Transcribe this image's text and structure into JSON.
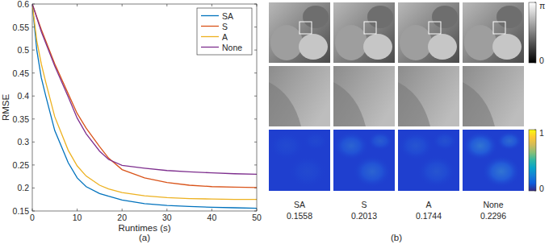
{
  "chart_data": {
    "type": "line",
    "caption": "(a)",
    "x_label": "Runtimes (s)",
    "y_label": "RMSE",
    "x": [
      0,
      1,
      2,
      3,
      5,
      8,
      10,
      12,
      15,
      17,
      20,
      25,
      30,
      35,
      40,
      45,
      50
    ],
    "xlim": [
      0,
      50
    ],
    "xticks": [
      0,
      10,
      20,
      30,
      40,
      50
    ],
    "ylim": [
      0.15,
      0.6
    ],
    "yticks": [
      0.15,
      0.2,
      0.25,
      0.3,
      0.35,
      0.4,
      0.45,
      0.5,
      0.55,
      0.6
    ],
    "grid": false,
    "legend": "top-right",
    "series": [
      {
        "name": "SA",
        "color": "#0072bd",
        "values": [
          0.6,
          0.5,
          0.44,
          0.4,
          0.325,
          0.255,
          0.222,
          0.203,
          0.188,
          0.182,
          0.174,
          0.166,
          0.162,
          0.16,
          0.158,
          0.157,
          0.156
        ]
      },
      {
        "name": "S",
        "color": "#d95319",
        "values": [
          0.6,
          0.572,
          0.545,
          0.52,
          0.47,
          0.405,
          0.362,
          0.33,
          0.29,
          0.265,
          0.24,
          0.222,
          0.212,
          0.206,
          0.203,
          0.202,
          0.201
        ]
      },
      {
        "name": "A",
        "color": "#edb120",
        "values": [
          0.6,
          0.52,
          0.47,
          0.43,
          0.355,
          0.282,
          0.248,
          0.226,
          0.206,
          0.198,
          0.19,
          0.183,
          0.179,
          0.177,
          0.176,
          0.175,
          0.175
        ]
      },
      {
        "name": "None",
        "color": "#7e2f8e",
        "values": [
          0.6,
          0.57,
          0.54,
          0.515,
          0.465,
          0.398,
          0.352,
          0.318,
          0.28,
          0.262,
          0.249,
          0.243,
          0.238,
          0.235,
          0.233,
          0.231,
          0.23
        ]
      }
    ]
  },
  "panels": {
    "caption": "(b)",
    "methods": [
      {
        "name": "SA",
        "rmse": 0.1558
      },
      {
        "name": "S",
        "rmse": 0.2013
      },
      {
        "name": "A",
        "rmse": 0.1744
      },
      {
        "name": "None",
        "rmse": 0.2296
      }
    ],
    "phase_colorbar": {
      "range": [
        0,
        3.14159
      ],
      "ticks": [
        0,
        {
          "value": 3.14159,
          "label": "π"
        }
      ]
    },
    "error_colorbar": {
      "range": [
        0,
        1
      ],
      "ticks": [
        0,
        1
      ]
    }
  }
}
